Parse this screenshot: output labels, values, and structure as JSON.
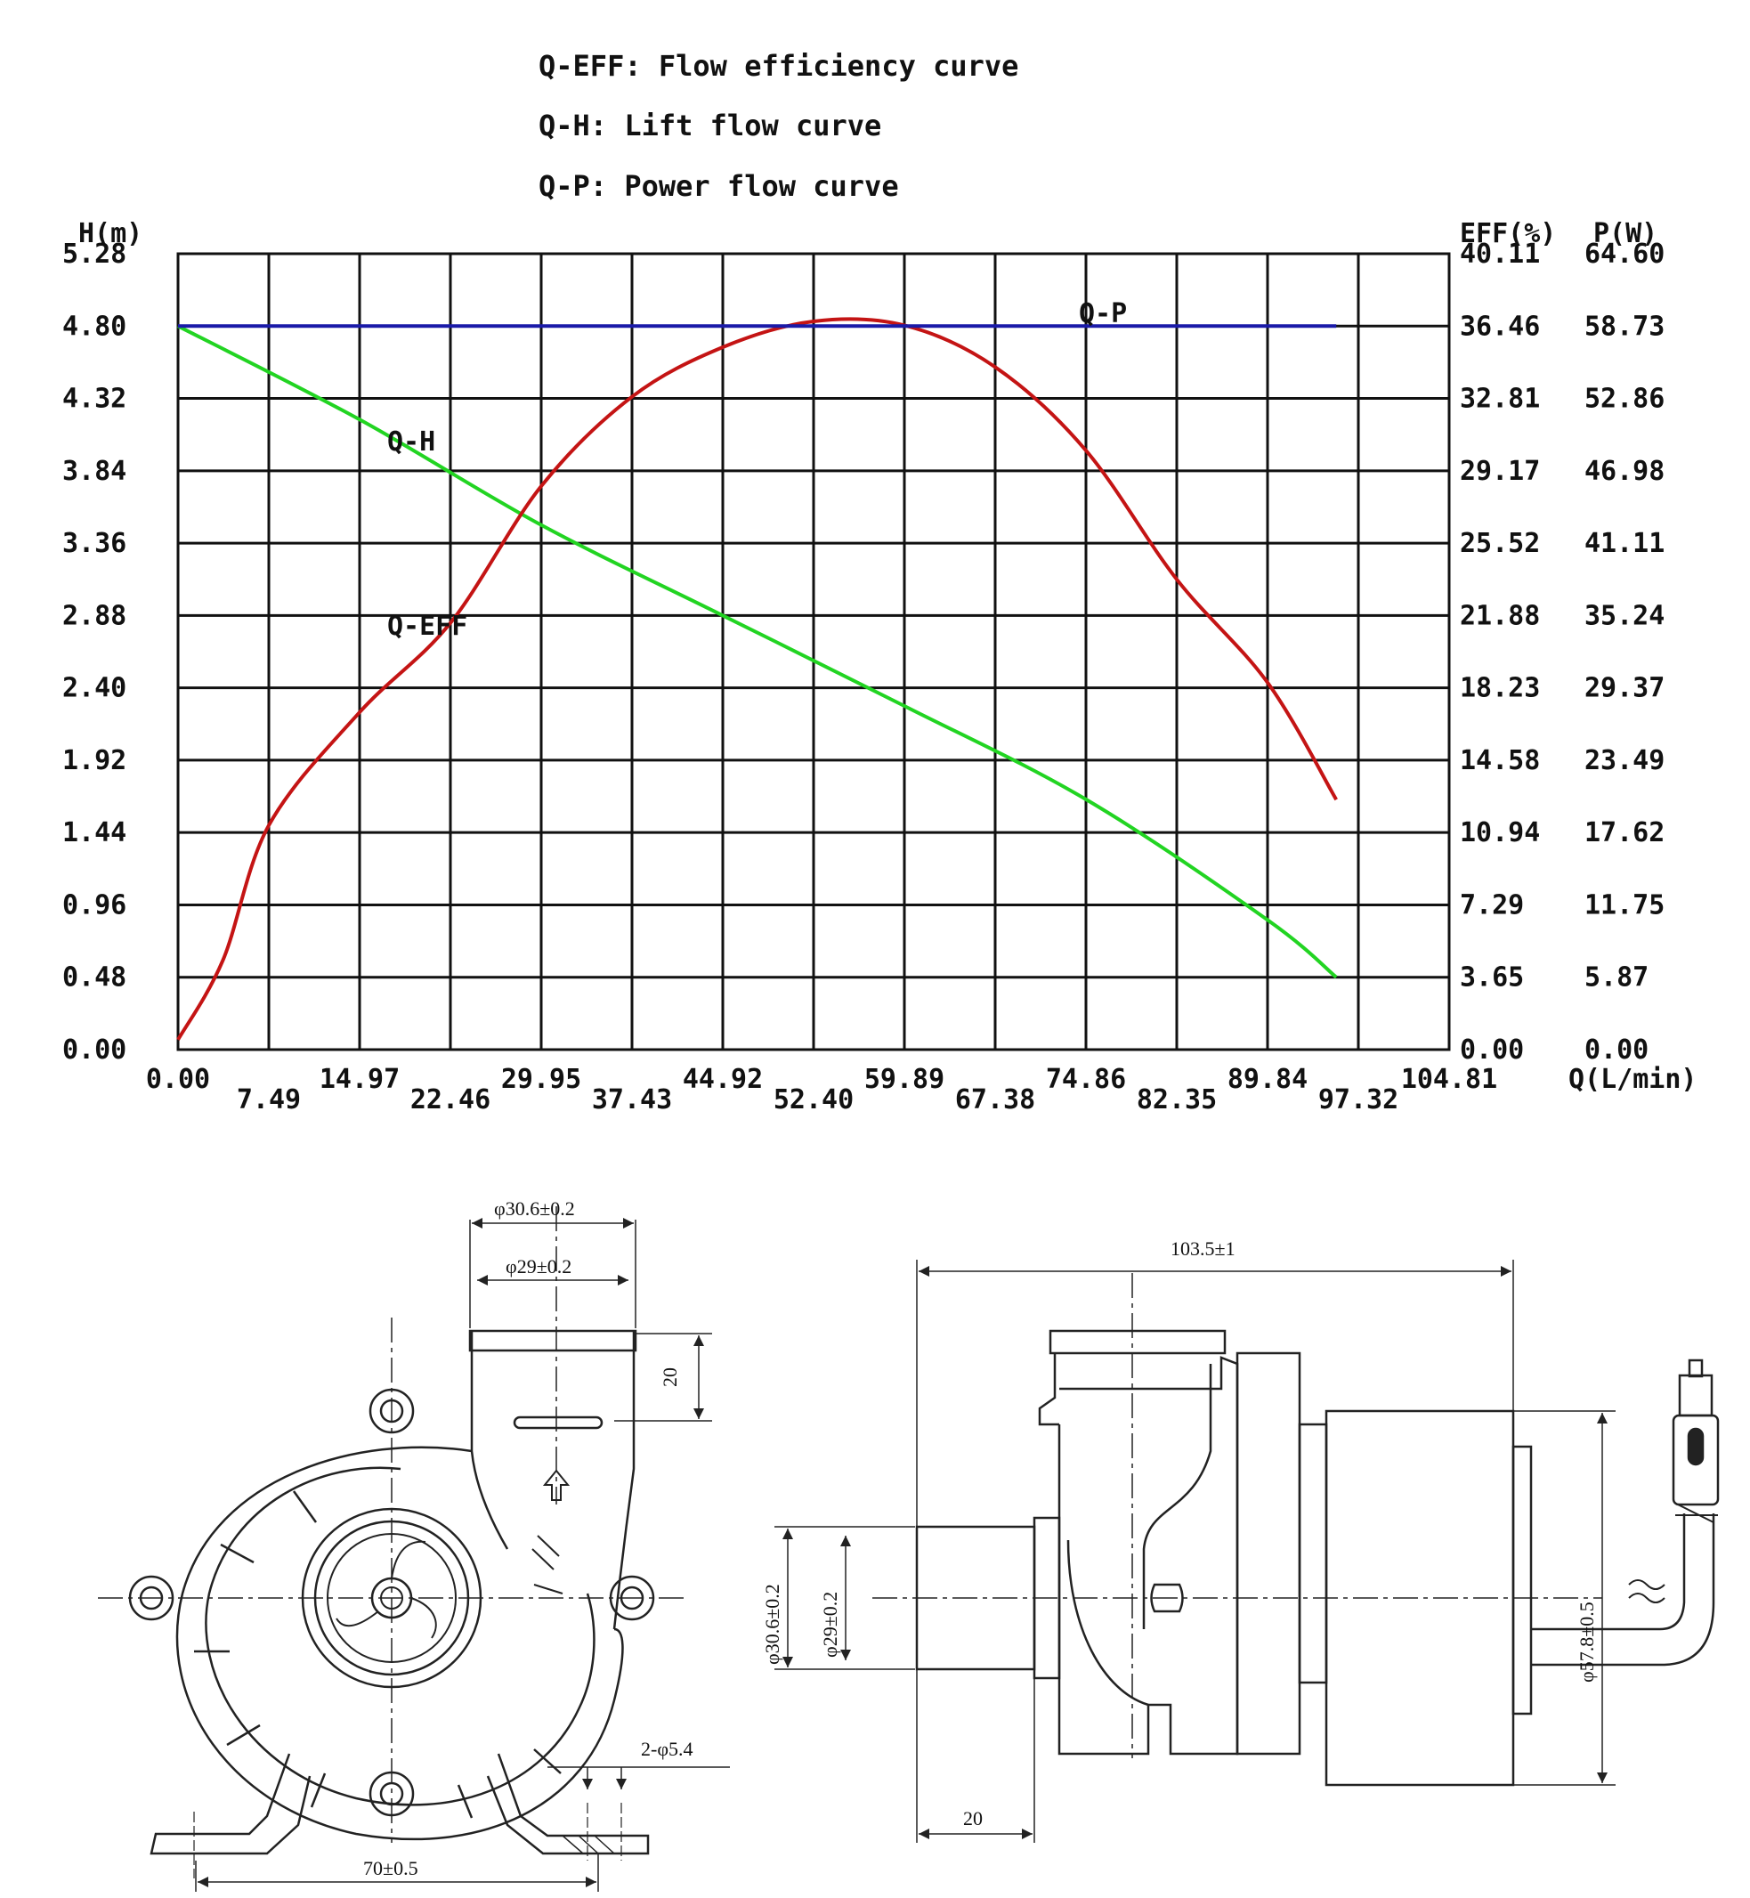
{
  "legend": {
    "eff": "Q-EFF: Flow efficiency curve",
    "h": "Q-H: Lift flow curve",
    "p": "Q-P: Power flow curve"
  },
  "chart_data": {
    "type": "line",
    "left_axis_title": "H(m)",
    "right_axis_titles": [
      "EFF(%)",
      "P(W)"
    ],
    "x_axis_title": "Q(L/min)",
    "xlim": [
      0,
      104.81
    ],
    "ylim": [
      0,
      5.28
    ],
    "grid": true,
    "x_ticks": [
      "0.00",
      "7.49",
      "14.97",
      "22.46",
      "29.95",
      "37.43",
      "44.92",
      "52.40",
      "59.89",
      "67.38",
      "74.86",
      "82.35",
      "89.84",
      "97.32",
      "104.81"
    ],
    "h_ticks": [
      "0.00",
      "0.48",
      "0.96",
      "1.44",
      "1.92",
      "2.40",
      "2.88",
      "3.36",
      "3.84",
      "4.32",
      "4.80",
      "5.28"
    ],
    "eff_ticks": [
      "0.00",
      "3.65",
      "7.29",
      "10.94",
      "14.58",
      "18.23",
      "21.88",
      "25.52",
      "29.17",
      "32.81",
      "36.46",
      "40.11"
    ],
    "p_ticks": [
      "0.00",
      "5.87",
      "11.75",
      "17.62",
      "23.49",
      "29.37",
      "35.24",
      "41.11",
      "46.98",
      "52.86",
      "58.73",
      "64.60"
    ],
    "series": [
      {
        "name": "Q-H",
        "axis": "H",
        "color": "#22d422",
        "x": [
          0,
          14.97,
          29.95,
          44.92,
          59.89,
          74.86,
          89.84,
          95.5
        ],
        "y": [
          4.8,
          4.18,
          3.48,
          2.88,
          2.28,
          1.66,
          0.86,
          0.48
        ]
      },
      {
        "name": "Q-EFF",
        "axis": "EFF",
        "color": "#c41414",
        "x": [
          0,
          3.7,
          7.49,
          14.97,
          22.46,
          29.95,
          37.43,
          44.92,
          52.4,
          59.89,
          67.38,
          74.86,
          82.35,
          89.84,
          95.5
        ],
        "y": [
          0.5,
          4.5,
          11.3,
          17.0,
          21.5,
          28.4,
          32.9,
          35.4,
          36.7,
          36.5,
          34.4,
          30.2,
          23.7,
          18.5,
          12.6
        ]
      },
      {
        "name": "Q-P",
        "axis": "P",
        "color": "#1a1aa8",
        "x": [
          0,
          95.5
        ],
        "y": [
          58.73,
          58.73
        ]
      }
    ],
    "curve_labels": [
      "Q-H",
      "Q-EFF",
      "Q-P"
    ]
  },
  "drawings": {
    "front": {
      "outer_dia": "φ30.6±0.2",
      "inner_dia": "φ29±0.2",
      "height": "20",
      "holes": "2-φ5.4",
      "width": "70±0.5"
    },
    "side": {
      "length": "103.5±1",
      "outer_dia": "φ30.6±0.2",
      "inner_dia": "φ29±0.2",
      "body_dia": "φ57.8±0.5",
      "inlet_len": "20"
    }
  }
}
